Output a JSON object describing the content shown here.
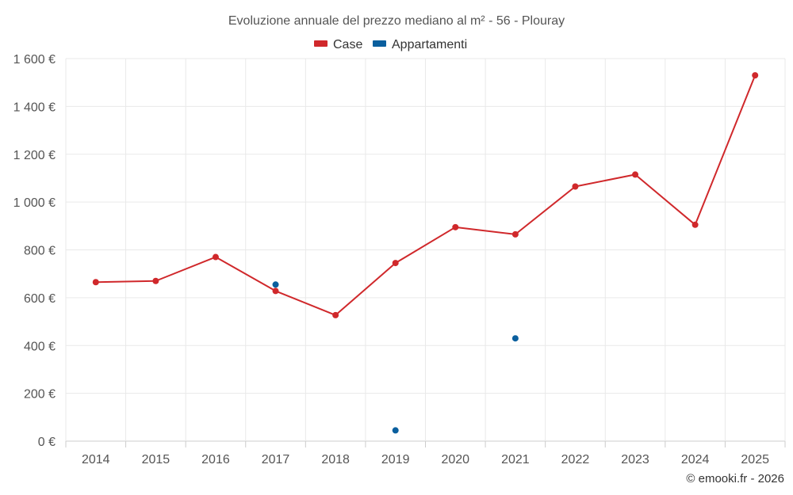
{
  "chart_data": {
    "type": "line",
    "title": "Evoluzione annuale del prezzo mediano al m² - 56 - Plouray",
    "xlabel": "",
    "ylabel": "",
    "categories": [
      "2014",
      "2015",
      "2016",
      "2017",
      "2018",
      "2019",
      "2020",
      "2021",
      "2022",
      "2023",
      "2024",
      "2025"
    ],
    "ylim": [
      0,
      1600
    ],
    "yticks": [
      0,
      200,
      400,
      600,
      800,
      1000,
      1200,
      1400,
      1600
    ],
    "ytick_labels": [
      "0 €",
      "200 €",
      "400 €",
      "600 €",
      "800 €",
      "1 000 €",
      "1 200 €",
      "1 400 €",
      "1 600 €"
    ],
    "grid": true,
    "legend_position": "top-center",
    "series": [
      {
        "name": "Case",
        "color": "#d0282b",
        "style": "line-markers",
        "values": [
          665,
          670,
          770,
          628,
          527,
          745,
          895,
          865,
          1065,
          1115,
          905,
          1530
        ]
      },
      {
        "name": "Appartamenti",
        "color": "#0a5f9e",
        "style": "markers",
        "values": [
          null,
          null,
          null,
          655,
          null,
          45,
          null,
          430,
          null,
          null,
          null,
          null
        ]
      }
    ],
    "credit": "© emooki.fr - 2026"
  }
}
